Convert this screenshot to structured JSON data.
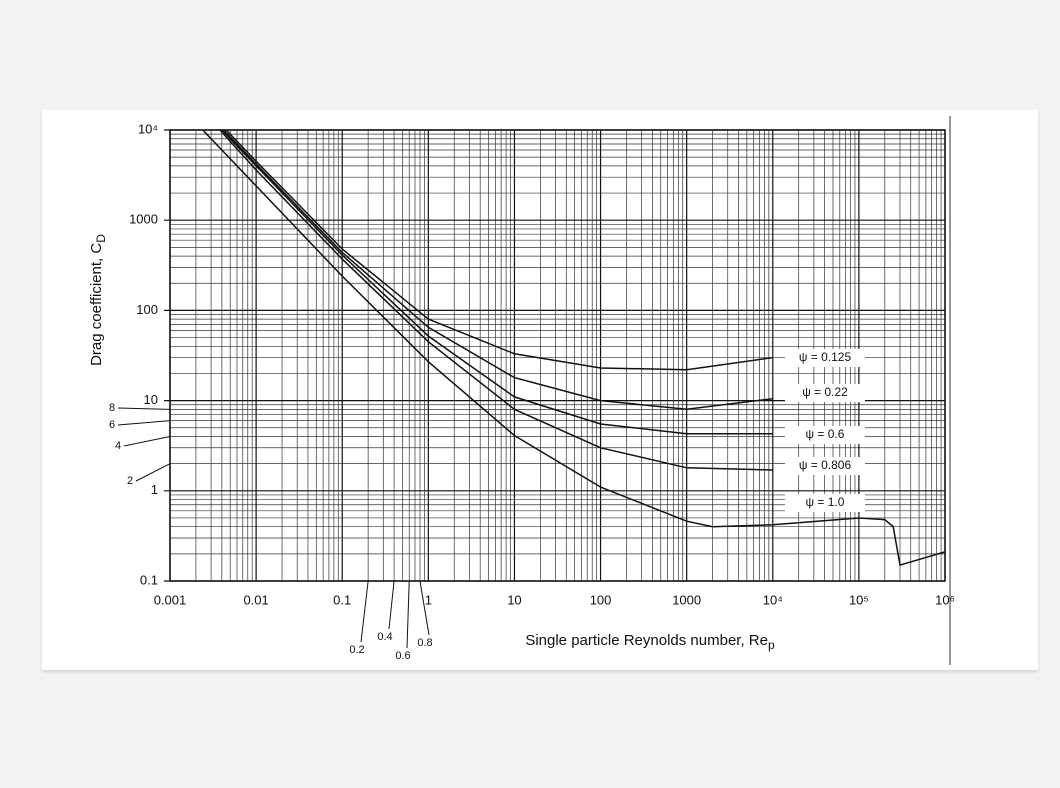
{
  "chart_data": {
    "type": "line",
    "log_x": true,
    "log_y": true,
    "grid": true,
    "xlabel": "Single particle Reynolds number, Re",
    "xlabel_sub": "p",
    "ylabel": "Drag coefficient, C",
    "ylabel_sub": "D",
    "xlim": [
      0.001,
      1000000
    ],
    "ylim": [
      0.1,
      10000
    ],
    "xticks": [
      0.001,
      0.01,
      0.1,
      1,
      10,
      100,
      1000,
      {
        "value": 10000,
        "label": "10⁴"
      },
      {
        "value": 100000,
        "label": "10⁵"
      },
      {
        "value": 1000000,
        "label": "10⁶"
      }
    ],
    "yticks": [
      0.1,
      1,
      10,
      100,
      1000,
      {
        "value": 10000,
        "label": "10⁴"
      }
    ],
    "yminor_labels": [
      8,
      6,
      4,
      2
    ],
    "xminor_labels": [
      0.2,
      0.4,
      0.6,
      0.8
    ],
    "series": [
      {
        "name": "ψ = 0.125",
        "color": "#111111",
        "x": [
          0.0045,
          0.01,
          0.1,
          1,
          10,
          100,
          1000,
          10000
        ],
        "values": [
          10000,
          4500,
          480,
          80,
          33,
          23,
          22,
          30
        ]
      },
      {
        "name": "ψ = 0.22",
        "color": "#111111",
        "x": [
          0.0042,
          0.01,
          0.1,
          1,
          10,
          100,
          1000,
          10000
        ],
        "values": [
          10000,
          4200,
          440,
          65,
          18,
          10,
          8,
          10.5
        ]
      },
      {
        "name": "ψ = 0.6",
        "color": "#111111",
        "x": [
          0.004,
          0.01,
          0.1,
          1,
          10,
          100,
          1000,
          10000
        ],
        "values": [
          10000,
          4000,
          410,
          52,
          11,
          5.5,
          4.3,
          4.3
        ]
      },
      {
        "name": "ψ = 0.806",
        "color": "#111111",
        "x": [
          0.0038,
          0.01,
          0.1,
          1,
          10,
          100,
          1000,
          10000
        ],
        "values": [
          10000,
          3600,
          370,
          45,
          8,
          3,
          1.8,
          1.7
        ]
      },
      {
        "name": "ψ = 1.0",
        "color": "#111111",
        "x": [
          0.0024,
          0.01,
          0.1,
          1,
          10,
          100,
          1000,
          2000,
          10000,
          100000,
          200000,
          250000,
          300000,
          1000000
        ],
        "values": [
          10000,
          2400,
          240,
          27,
          4.1,
          1.1,
          0.46,
          0.4,
          0.42,
          0.5,
          0.48,
          0.4,
          0.15,
          0.21
        ]
      }
    ]
  }
}
